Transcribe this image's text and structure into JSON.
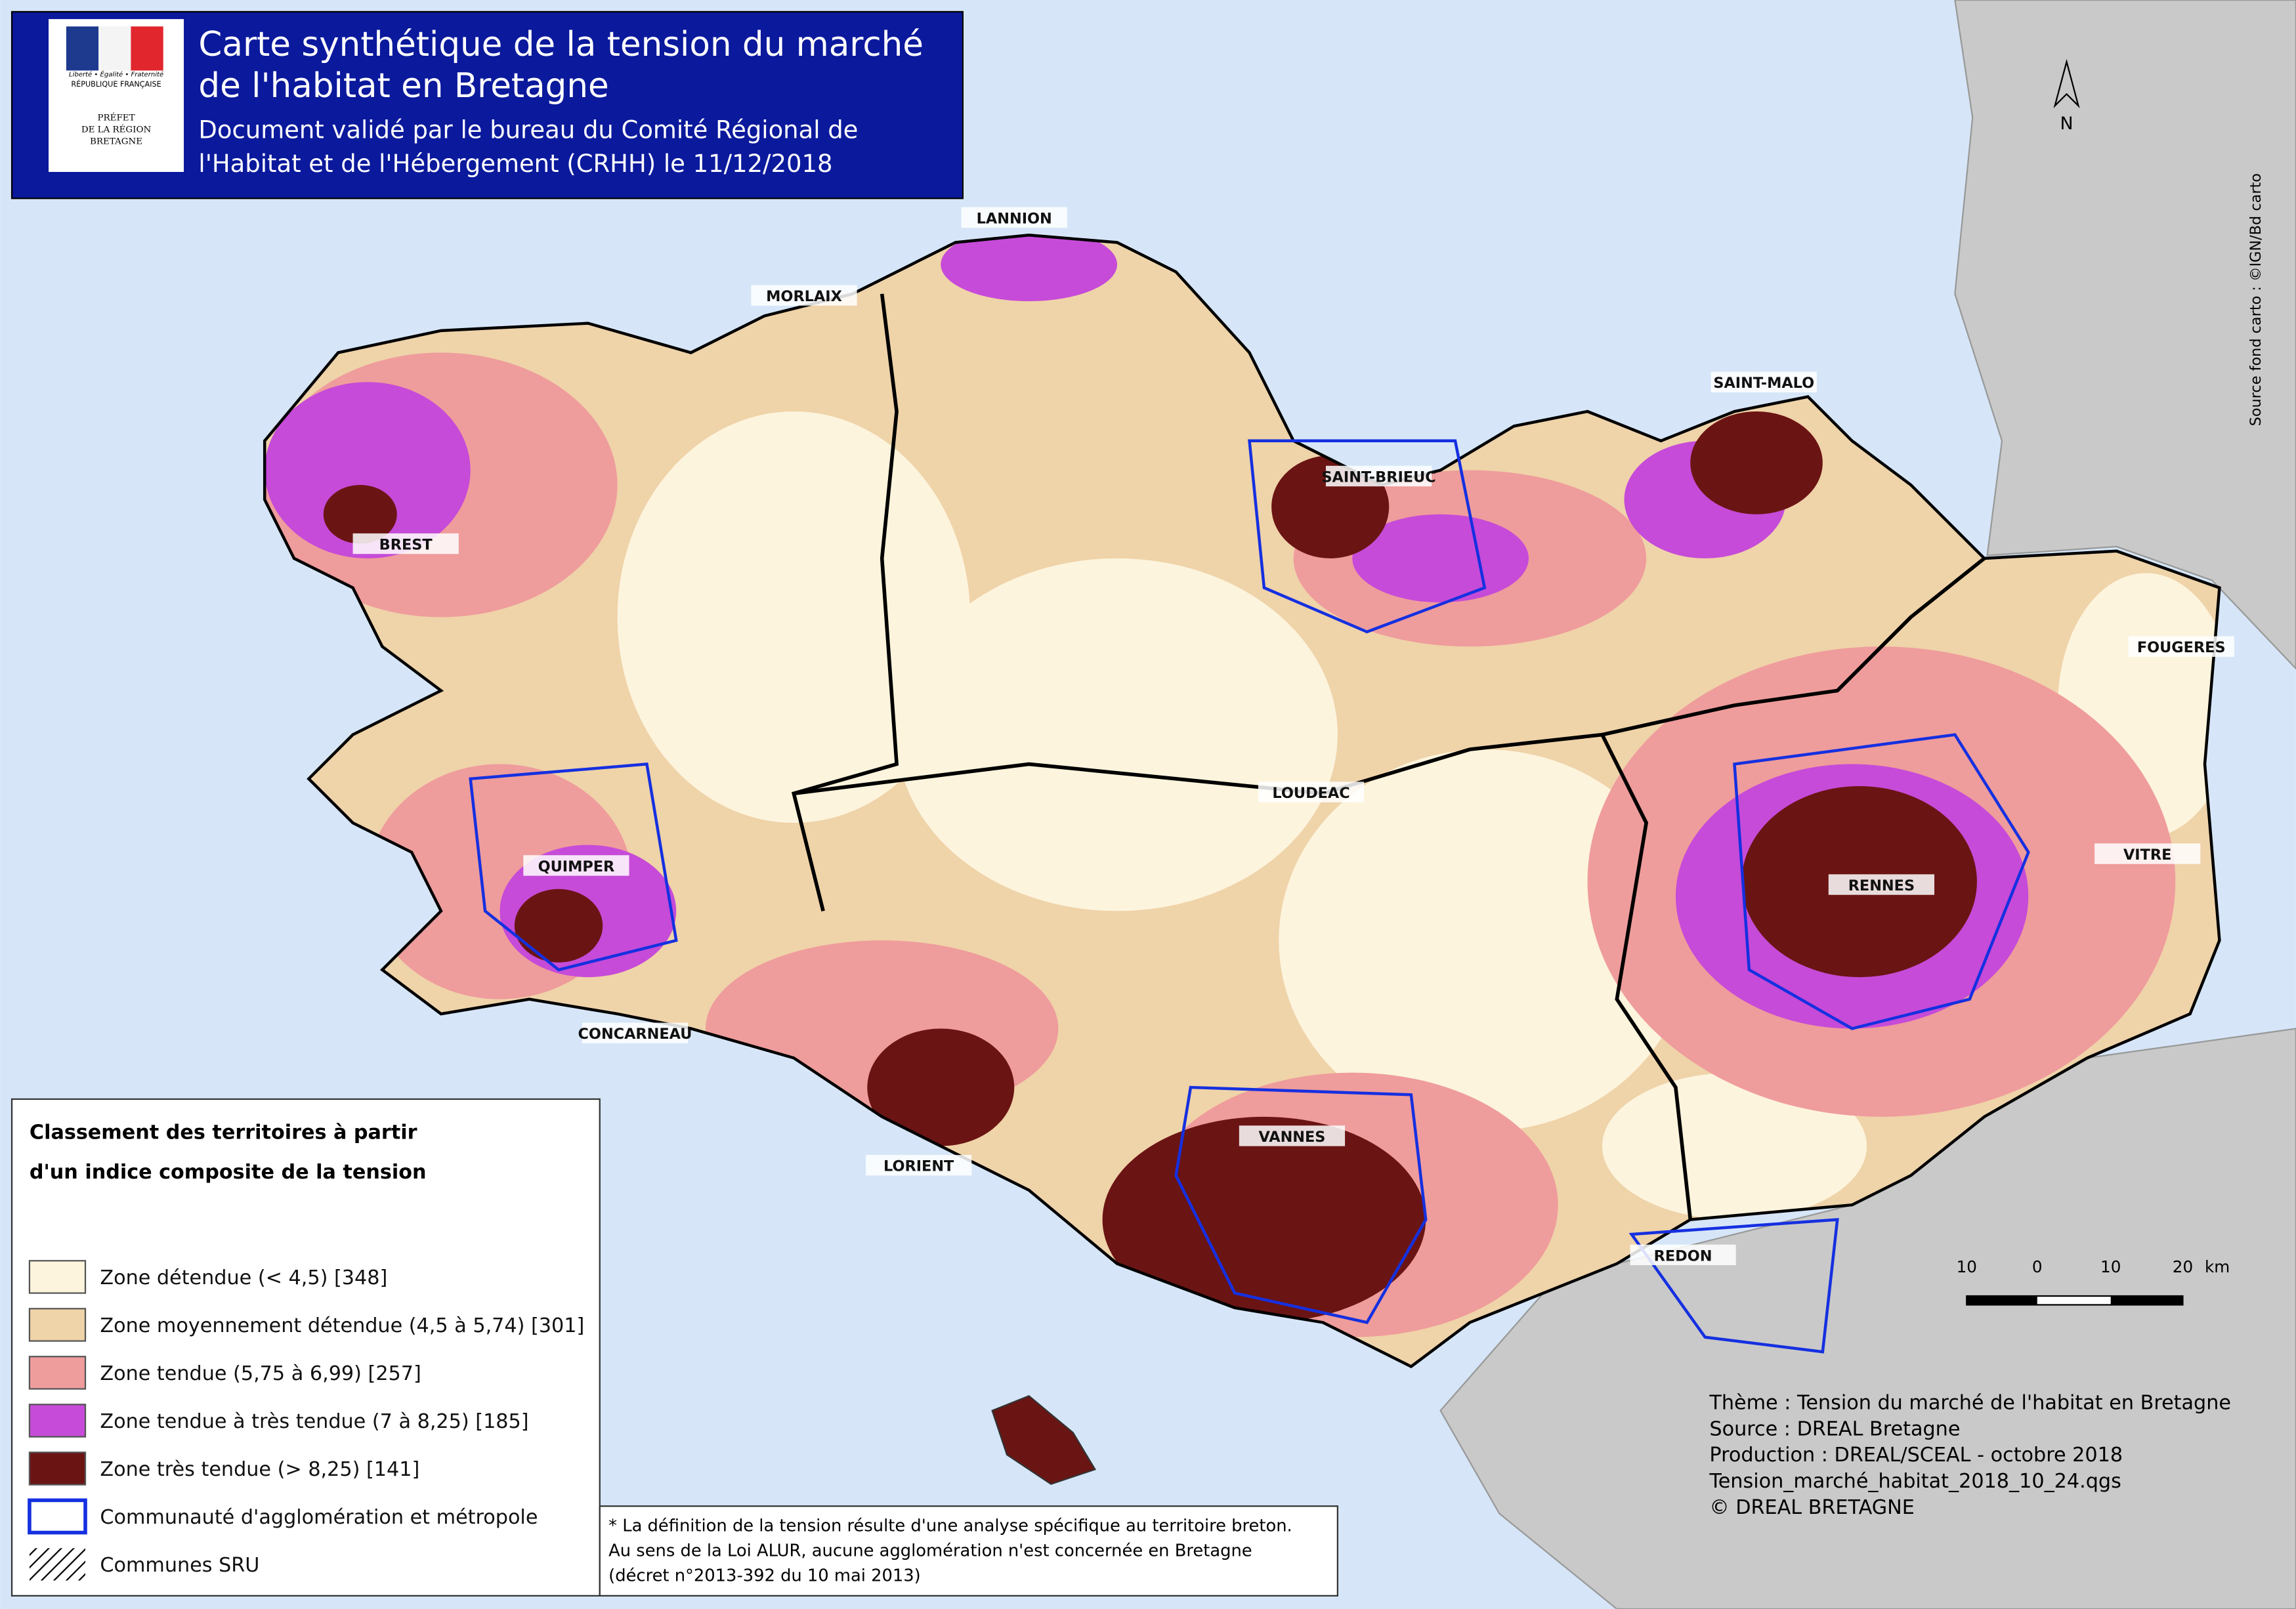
{
  "header": {
    "title_lines": [
      "Carte synthétique de la tension du marché",
      "de l'habitat en Bretagne"
    ],
    "subtitle_lines": [
      "Document validé par le bureau du Comité Régional de",
      "l'Habitat et de l'Hébergement (CRHH) le 11/12/2018"
    ]
  },
  "logo": {
    "motto": "Liberté • Égalité • Fraternité",
    "country": "RÉPUBLIQUE FRANÇAISE",
    "prefet_lines": [
      "PRÉFET",
      "DE LA RÉGION",
      "BRETAGNE"
    ]
  },
  "north": "N",
  "source_fond": "Source fond carto : ©IGN/Bd carto",
  "places": [
    "LANNION",
    "MORLAIX",
    "SAINT-MALO",
    "SAINT-BRIEUC",
    "BREST",
    "FOUGERES",
    "LOUDEAC",
    "QUIMPER",
    "RENNES",
    "VITRE",
    "CONCARNEAU",
    "VANNES",
    "LORIENT",
    "REDON"
  ],
  "legend": {
    "title_lines": [
      "Classement des territoires à partir",
      "d'un indice composite de la tension"
    ],
    "items": [
      {
        "label": "Zone détendue (< 4,5) [348]",
        "color": "#fdf4dd"
      },
      {
        "label": "Zone moyennement détendue (4,5 à 5,74) [301]",
        "color": "#efd3a9"
      },
      {
        "label": "Zone tendue (5,75 à 6,99) [257]",
        "color": "#ef9c9c"
      },
      {
        "label": "Zone tendue à très tendue (7 à 8,25) [185]",
        "color": "#c64bd8"
      },
      {
        "label": "Zone très tendue (> 8,25) [141]",
        "color": "#6b1414"
      }
    ],
    "agglo": "Communauté d'agglomération et métropole",
    "sru": "Communes SRU"
  },
  "footnote_lines": [
    "* La définition de la tension résulte d'une analyse spécifique au territoire breton.",
    "Au sens de la Loi ALUR, aucune agglomération n'est concernée en Bretagne",
    "(décret n°2013-392 du 10 mai 2013)"
  ],
  "scale": {
    "labels": [
      "10",
      "0",
      "10",
      "20"
    ],
    "unit": "km"
  },
  "credits": [
    "Thème : Tension du marché de l'habitat en Bretagne",
    "Source : DREAL Bretagne",
    "Production : DREAL/SCEAL - octobre 2018",
    "Tension_marché_habitat_2018_10_24.qgs",
    "© DREAL BRETAGNE"
  ]
}
